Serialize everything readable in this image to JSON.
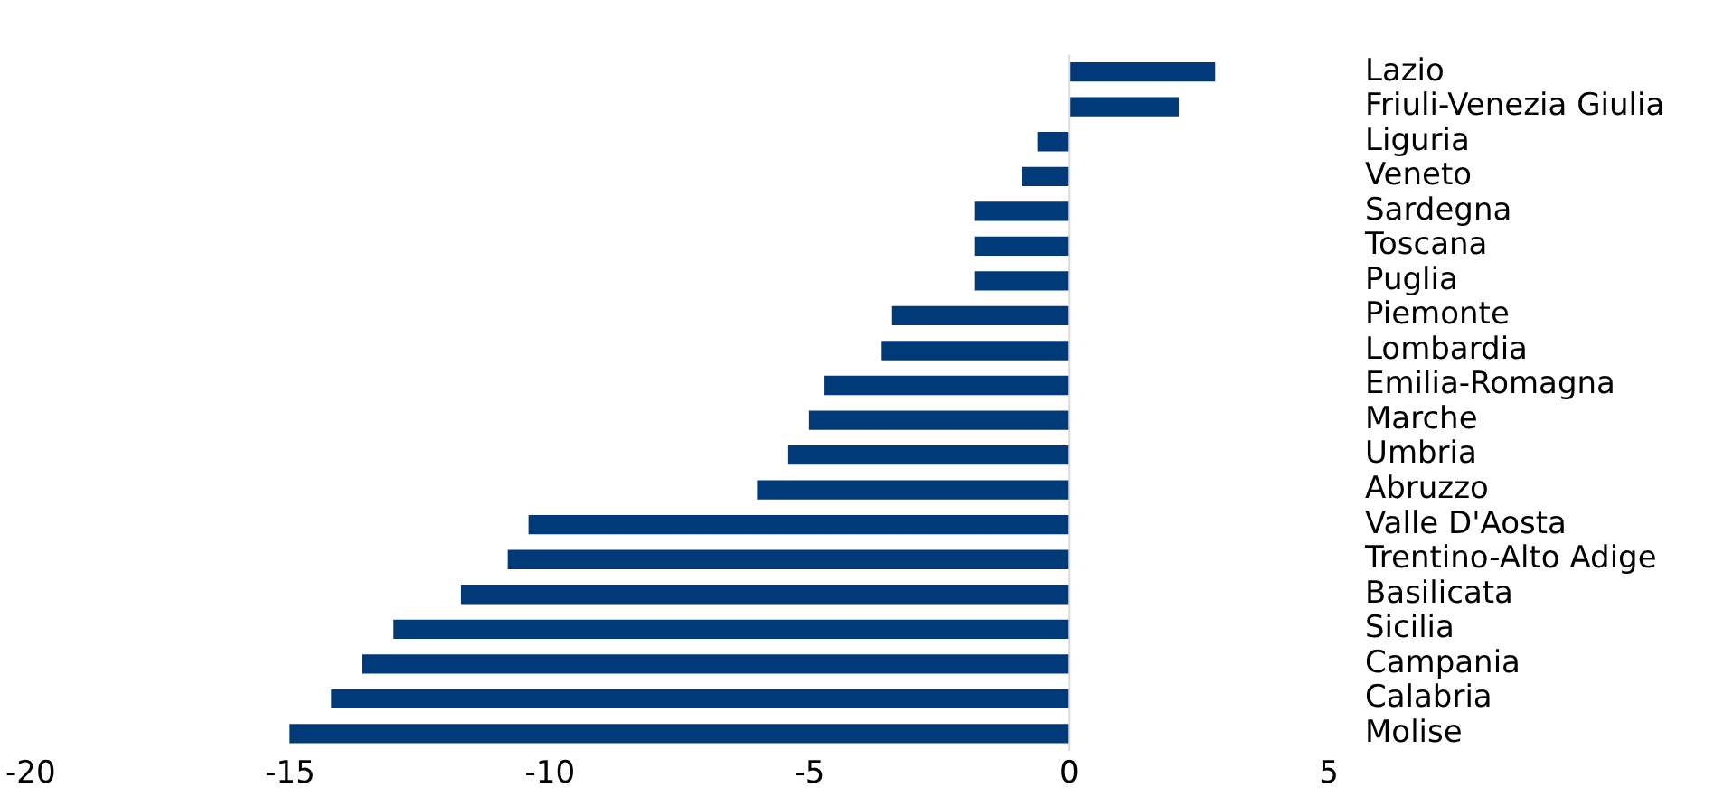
{
  "chart_data": {
    "type": "bar",
    "orientation": "horizontal",
    "categories": [
      "Lazio",
      "Friuli-Venezia Giulia",
      "Liguria",
      "Veneto",
      "Sardegna",
      "Toscana",
      "Puglia",
      "Piemonte",
      "Lombardia",
      "Emilia-Romagna",
      "Marche",
      "Umbria",
      "Abruzzo",
      "Valle D'Aosta",
      "Trentino-Alto Adige",
      "Basilicata",
      "Sicilia",
      "Campania",
      "Calabria",
      "Molise"
    ],
    "values": [
      2.8,
      2.1,
      -0.6,
      -0.9,
      -1.8,
      -1.8,
      -1.8,
      -3.4,
      -3.6,
      -4.7,
      -5.0,
      -5.4,
      -6.0,
      -10.4,
      -10.8,
      -11.7,
      -13.0,
      -13.6,
      -14.2,
      -15.0
    ],
    "color": "#003a78",
    "xlim": [
      -20,
      5
    ],
    "xticks": [
      -20,
      -15,
      -10,
      -5,
      0,
      5
    ],
    "grid": false,
    "legend": false,
    "ref_lines": [
      {
        "axis": "x",
        "value": 0,
        "color": "#d9d9d9"
      }
    ]
  }
}
